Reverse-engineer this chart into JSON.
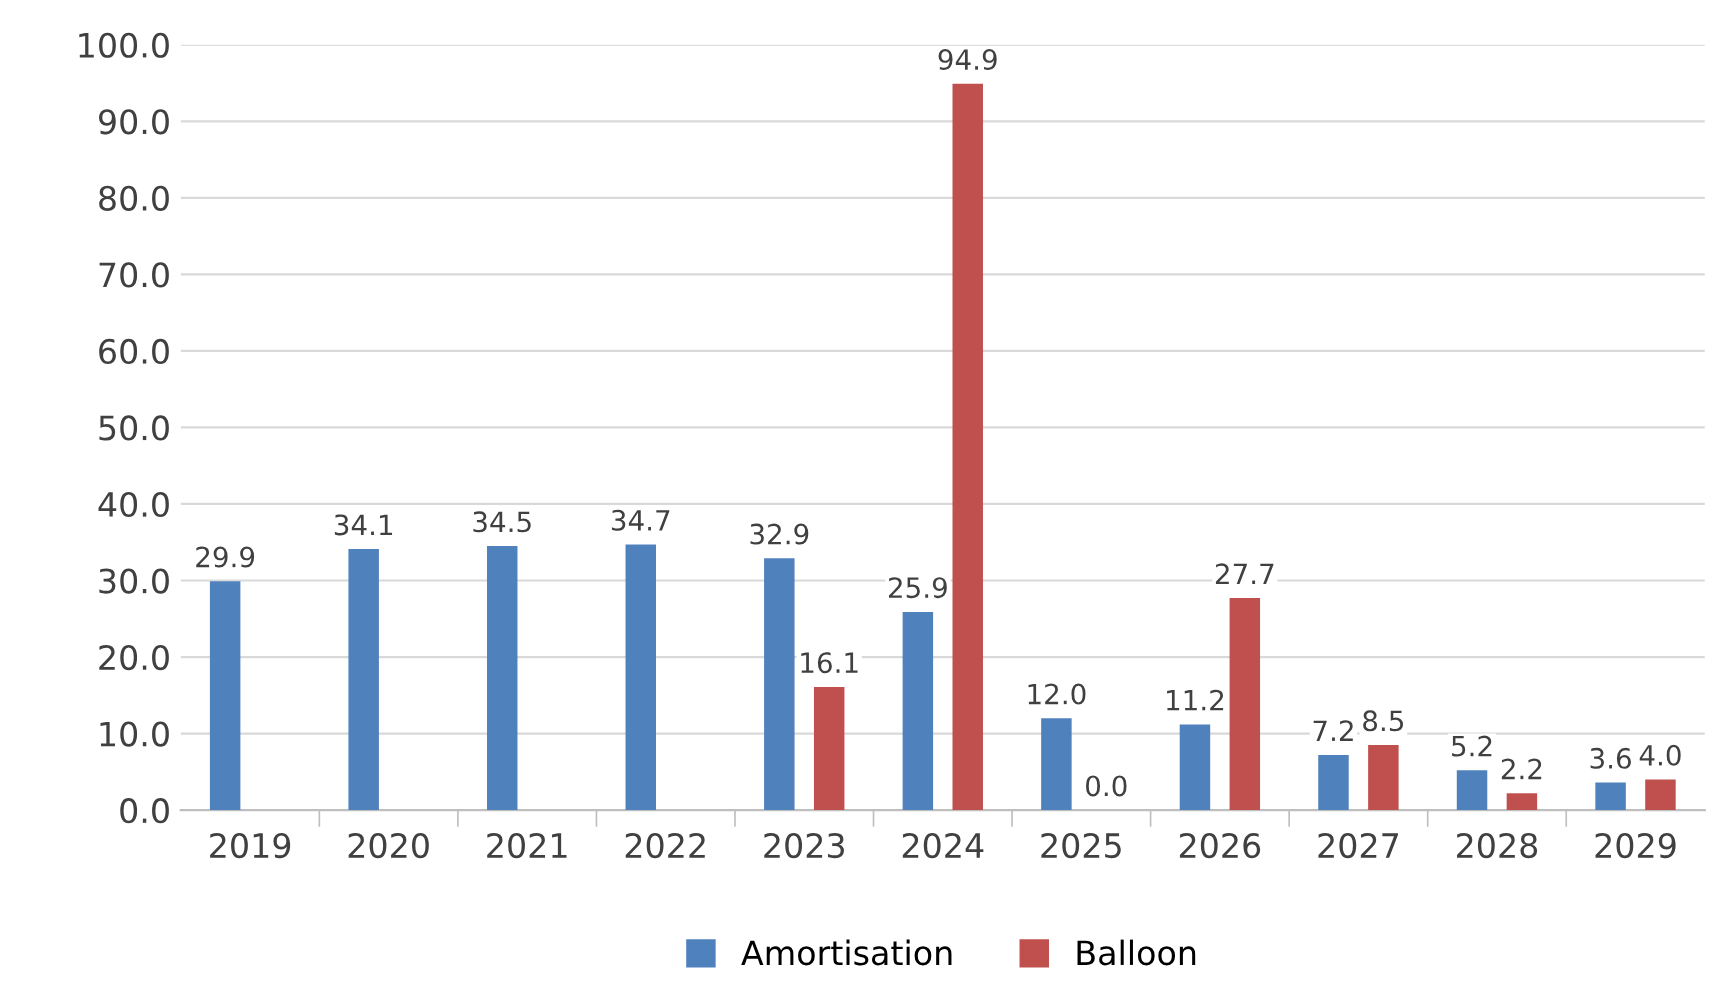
{
  "chart_data": {
    "type": "bar",
    "categories": [
      "2019",
      "2020",
      "2021",
      "2022",
      "2023",
      "2024",
      "2025",
      "2026",
      "2027",
      "2028",
      "2029"
    ],
    "series": [
      {
        "name": "Amortisation",
        "color": "#4f81bd",
        "values": [
          29.9,
          34.1,
          34.5,
          34.7,
          32.9,
          25.9,
          12.0,
          11.2,
          7.2,
          5.2,
          3.6
        ],
        "value_labels": [
          "29.9",
          "34.1",
          "34.5",
          "34.7",
          "32.9",
          "25.9",
          "12.0",
          "11.2",
          "7.2",
          "5.2",
          "3.6"
        ]
      },
      {
        "name": "Balloon",
        "color": "#c0504d",
        "values": [
          null,
          null,
          null,
          null,
          16.1,
          94.9,
          0.0,
          27.7,
          8.5,
          2.2,
          4.0
        ],
        "value_labels": [
          null,
          null,
          null,
          null,
          "16.1",
          "94.9",
          "0.0",
          "27.7",
          "8.5",
          "2.2",
          "4.0"
        ]
      }
    ],
    "ylim": [
      0,
      100
    ],
    "yticks": [
      {
        "value": 0,
        "label": "0.0"
      },
      {
        "value": 10,
        "label": "10.0"
      },
      {
        "value": 20,
        "label": "20.0"
      },
      {
        "value": 30,
        "label": "30.0"
      },
      {
        "value": 40,
        "label": "40.0"
      },
      {
        "value": 50,
        "label": "50.0"
      },
      {
        "value": 60,
        "label": "60.0"
      },
      {
        "value": 70,
        "label": "70.0"
      },
      {
        "value": 80,
        "label": "80.0"
      },
      {
        "value": 90,
        "label": "90.0"
      },
      {
        "value": 100,
        "label": "100.0"
      }
    ],
    "grid": "y",
    "legend": "bottom"
  }
}
